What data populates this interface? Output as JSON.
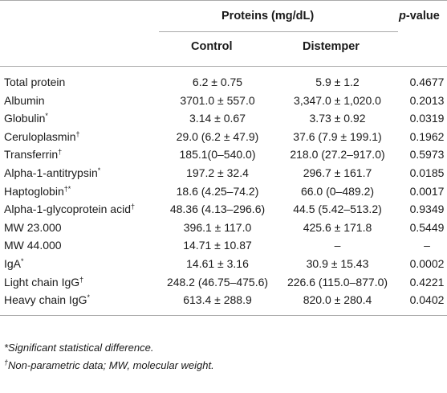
{
  "header": {
    "group": "Proteins (mg/dL)",
    "col_control": "Control",
    "col_distemper": "Distemper",
    "col_p": "p",
    "col_p_suffix": "-value"
  },
  "rows": [
    {
      "name": "Total protein",
      "mark": "",
      "control": "6.2 ± 0.75",
      "distemper": "5.9 ± 1.2",
      "p": "0.4677"
    },
    {
      "name": "Albumin",
      "mark": "",
      "control": "3701.0 ± 557.0",
      "distemper": "3,347.0 ± 1,020.0",
      "p": "0.2013"
    },
    {
      "name": "Globulin",
      "mark": "*",
      "control": "3.14 ± 0.67",
      "distemper": "3.73 ± 0.92",
      "p": "0.0319"
    },
    {
      "name": "Ceruloplasmin",
      "mark": "†",
      "control": "29.0 (6.2 ± 47.9)",
      "distemper": "37.6 (7.9 ± 199.1)",
      "p": "0.1962"
    },
    {
      "name": "Transferrin",
      "mark": "†",
      "control": "185.1(0–540.0)",
      "distemper": "218.0 (27.2–917.0)",
      "p": "0.5973"
    },
    {
      "name": "Alpha-1-antitrypsin",
      "mark": "*",
      "control": "197.2 ± 32.4",
      "distemper": "296.7 ± 161.7",
      "p": "0.0185"
    },
    {
      "name": "Haptoglobin",
      "mark": "†*",
      "control": "18.6 (4.25–74.2)",
      "distemper": "66.0 (0–489.2)",
      "p": "0.0017"
    },
    {
      "name": "Alpha-1-glycoprotein acid",
      "mark": "†",
      "control": "48.36 (4.13–296.6)",
      "distemper": "44.5 (5.42–513.2)",
      "p": "0.9349"
    },
    {
      "name": "MW 23.000",
      "mark": "",
      "control": "396.1 ± 117.0",
      "distemper": "425.6 ± 171.8",
      "p": "0.5449"
    },
    {
      "name": "MW 44.000",
      "mark": "",
      "control": "14.71 ± 10.87",
      "distemper": "–",
      "p": "–"
    },
    {
      "name": "IgA",
      "mark": "*",
      "control": "14.61 ± 3.16",
      "distemper": "30.9 ± 15.43",
      "p": "0.0002"
    },
    {
      "name": "Light chain IgG",
      "mark": "†",
      "control": "248.2 (46.75–475.6)",
      "distemper": "226.6 (115.0–877.0)",
      "p": "0.4221"
    },
    {
      "name": "Heavy chain IgG",
      "mark": "*",
      "control": "613.4 ± 288.9",
      "distemper": "820.0 ± 280.4",
      "p": "0.0402"
    }
  ],
  "footnotes": [
    {
      "mark": "",
      "text": "*Significant statistical difference."
    },
    {
      "mark": "†",
      "text": "Non-parametric data; MW, molecular weight."
    }
  ]
}
